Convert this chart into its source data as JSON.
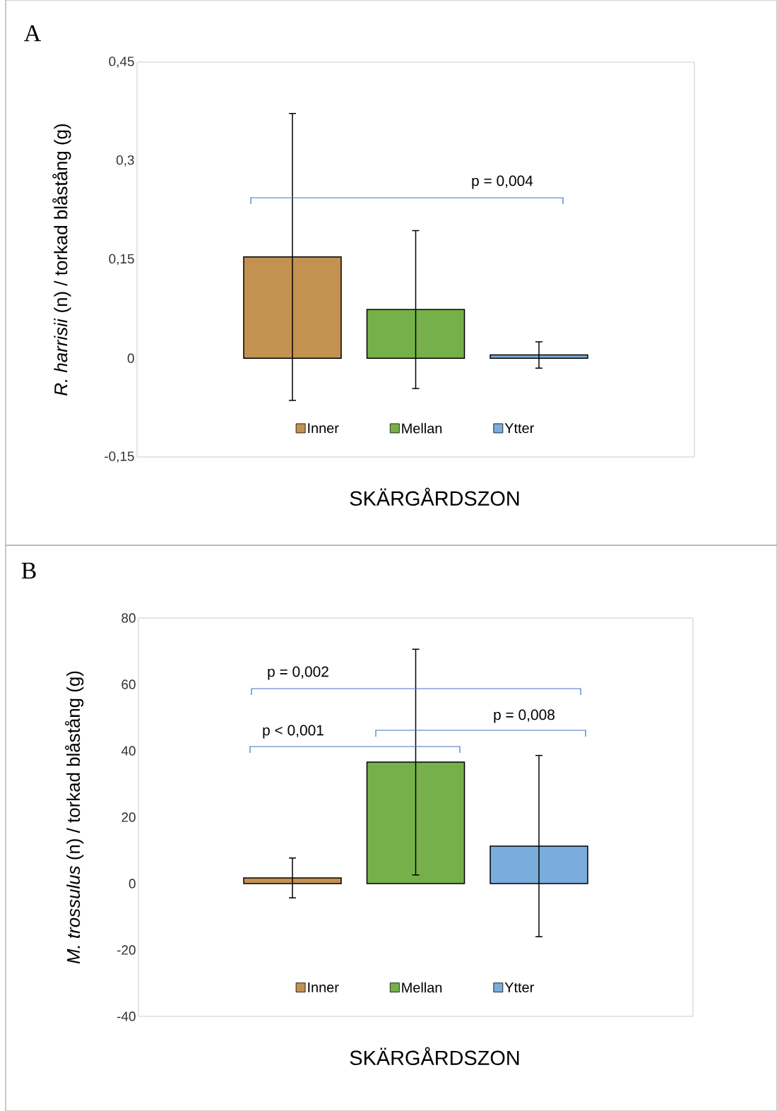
{
  "chart_data": [
    {
      "type": "bar",
      "title": "A",
      "xlabel": "SKÄRGÅRDSZON",
      "ylabel": "*R. harrisii* (n) / torkad blåstång (g)",
      "categories": [
        null
      ],
      "series": [
        {
          "name": "Inner",
          "color": "#c39150",
          "values": [
            0.154
          ],
          "errors": [
            0.218
          ]
        },
        {
          "name": "Mellan",
          "color": "#76b04b",
          "values": [
            0.074
          ],
          "errors": [
            0.12
          ]
        },
        {
          "name": "Ytter",
          "color": "#7aacdc",
          "values": [
            0.005
          ],
          "errors": [
            0.02
          ]
        }
      ],
      "ylim": [
        -0.15,
        0.45
      ],
      "yticks": [
        {
          "value": -0.15,
          "label": "-0,15"
        },
        {
          "value": 0,
          "label": "0"
        },
        {
          "value": 0.15,
          "label": "0,15"
        },
        {
          "value": 0.3,
          "label": "0,3"
        },
        {
          "value": 0.45,
          "label": "0,45"
        }
      ],
      "legend": "bottom",
      "tick_labels": "y",
      "annotations": [
        "p = 0,004"
      ]
    },
    {
      "type": "bar",
      "title": "B",
      "xlabel": "SKÄRGÅRDSZON",
      "ylabel": "*M. trossulus* (n) / torkad blåstång (g)",
      "categories": [
        null
      ],
      "series": [
        {
          "name": "Inner",
          "color": "#c39150",
          "values": [
            1.7
          ],
          "errors": [
            6
          ]
        },
        {
          "name": "Mellan",
          "color": "#76b04b",
          "values": [
            36.6
          ],
          "errors": [
            34
          ]
        },
        {
          "name": "Ytter",
          "color": "#7aacdc",
          "values": [
            11.3
          ],
          "errors": [
            27.3
          ]
        }
      ],
      "ylim": [
        -40,
        80
      ],
      "yticks": [
        {
          "value": -40,
          "label": "-40"
        },
        {
          "value": -20,
          "label": "-20"
        },
        {
          "value": 0,
          "label": "0"
        },
        {
          "value": 20,
          "label": "20"
        },
        {
          "value": 40,
          "label": "40"
        },
        {
          "value": 60,
          "label": "60"
        },
        {
          "value": 80,
          "label": "80"
        }
      ],
      "legend": "bottom",
      "tick_labels": "y",
      "annotations": [
        "p = 0,002",
        "p = 0,008",
        "p < 0,001"
      ]
    }
  ]
}
